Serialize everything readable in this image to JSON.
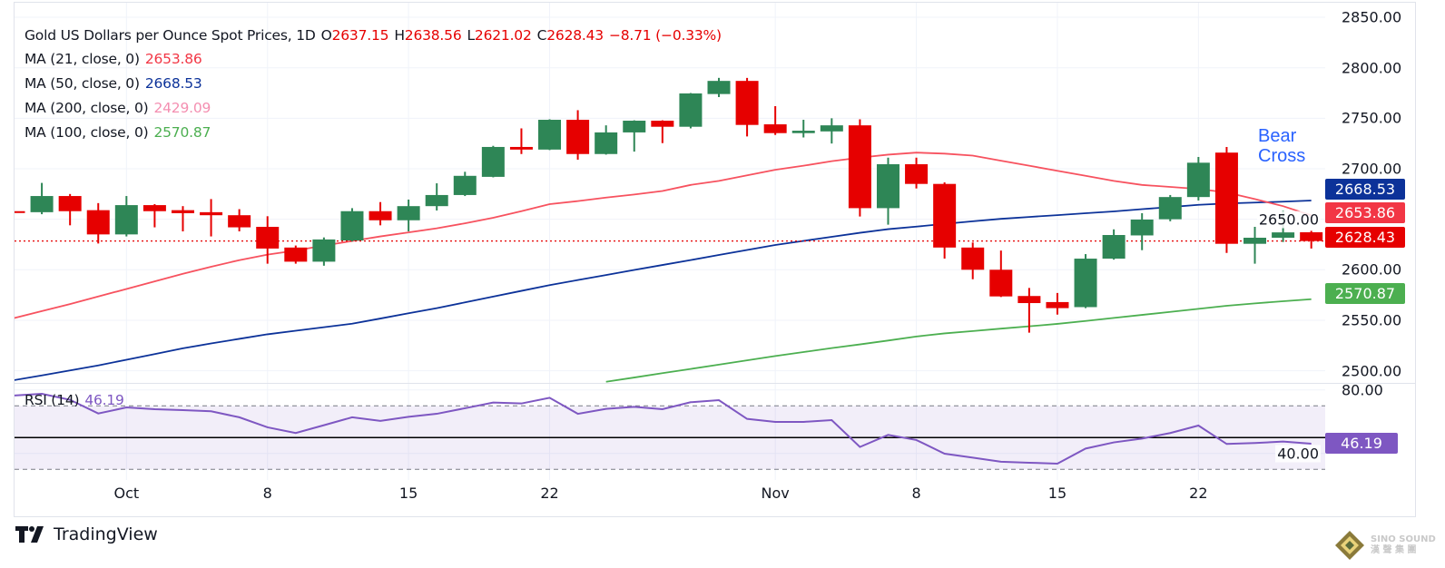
{
  "header": {
    "symbol_title": "Gold US Dollars per Ounce Spot Prices, 1D",
    "open_label": "O",
    "open": "2637.15",
    "high_label": "H",
    "high": "2638.56",
    "low_label": "L",
    "low": "2621.02",
    "close_label": "C",
    "close": "2628.43",
    "change": "−8.71 (−0.33%)"
  },
  "indicators": [
    {
      "label": "MA (21, close, 0)",
      "value": "2653.86",
      "color": "#f23645"
    },
    {
      "label": "MA (50, close, 0)",
      "value": "2668.53",
      "color": "#0c3299"
    },
    {
      "label": "MA (200, close, 0)",
      "value": "2429.09",
      "color": "#f48fb1"
    },
    {
      "label": "MA (100, close, 0)",
      "value": "2570.87",
      "color": "#4caf50"
    }
  ],
  "rsi": {
    "label": "RSI (14)",
    "value": "46.19",
    "color": "#7e57c2"
  },
  "annotation": {
    "line1": "Bear",
    "line2": "Cross",
    "color": "#2962ff"
  },
  "price_badges": [
    {
      "value": "2668.53",
      "color": "#0c3299"
    },
    {
      "value": "2653.86",
      "color": "#f23645"
    },
    {
      "value": "2628.43",
      "color": "#e60000"
    },
    {
      "value": "2570.87",
      "color": "#4caf50"
    }
  ],
  "footer": {
    "brand": "TradingView",
    "watermark_line1": "SINO SOUND",
    "watermark_line2": "漢 聲 集 團"
  },
  "chart_data": {
    "type": "candlestick",
    "up_color": "#2e8656",
    "down_color": "#e60000",
    "dates": [
      "Sep 25",
      "Sep 26",
      "Sep 27",
      "Sep 30",
      "Oct 1",
      "Oct 2",
      "Oct 3",
      "Oct 4",
      "Oct 7",
      "Oct 8",
      "Oct 9",
      "Oct 10",
      "Oct 11",
      "Oct 14",
      "Oct 15",
      "Oct 16",
      "Oct 17",
      "Oct 18",
      "Oct 21",
      "Oct 22",
      "Oct 23",
      "Oct 24",
      "Oct 25",
      "Oct 28",
      "Oct 29",
      "Oct 30",
      "Oct 31",
      "Nov 1",
      "Nov 4",
      "Nov 5",
      "Nov 6",
      "Nov 7",
      "Nov 8",
      "Nov 11",
      "Nov 12",
      "Nov 13",
      "Nov 14",
      "Nov 15",
      "Nov 18",
      "Nov 19",
      "Nov 20",
      "Nov 21",
      "Nov 22",
      "Nov 25",
      "Nov 26",
      "Nov 27",
      "Nov 28"
    ],
    "ohlc": [
      [
        2658,
        2658.5,
        2657,
        2657
      ],
      [
        2657,
        2686,
        2655,
        2673
      ],
      [
        2673,
        2675,
        2644,
        2658
      ],
      [
        2659,
        2666,
        2626,
        2635
      ],
      [
        2635,
        2673,
        2633,
        2664
      ],
      [
        2664,
        2665,
        2642,
        2658
      ],
      [
        2659,
        2663,
        2638,
        2656
      ],
      [
        2657,
        2670,
        2633,
        2654
      ],
      [
        2654,
        2660,
        2638,
        2642
      ],
      [
        2642.5,
        2653,
        2606,
        2621
      ],
      [
        2622,
        2624,
        2606,
        2608
      ],
      [
        2608,
        2632,
        2604,
        2630
      ],
      [
        2629,
        2661,
        2628,
        2658
      ],
      [
        2658,
        2667,
        2644,
        2649
      ],
      [
        2649,
        2669.5,
        2638,
        2663
      ],
      [
        2663,
        2685.6,
        2658.7,
        2674
      ],
      [
        2674,
        2697,
        2673,
        2693
      ],
      [
        2692,
        2722.7,
        2691.5,
        2721.6
      ],
      [
        2721.6,
        2740,
        2714.6,
        2719
      ],
      [
        2719,
        2749,
        2718.5,
        2748.5
      ],
      [
        2748.5,
        2758,
        2709,
        2714.6
      ],
      [
        2714.6,
        2743,
        2714,
        2736
      ],
      [
        2736,
        2748,
        2717,
        2747.6
      ],
      [
        2747.6,
        2748,
        2725.4,
        2741.6
      ],
      [
        2741.6,
        2775,
        2740,
        2774.6
      ],
      [
        2774,
        2790,
        2771,
        2787
      ],
      [
        2787,
        2790,
        2732,
        2743.4
      ],
      [
        2744,
        2762,
        2733.5,
        2735.3
      ],
      [
        2735.3,
        2748.5,
        2731,
        2737.7
      ],
      [
        2737,
        2750,
        2725,
        2743
      ],
      [
        2743,
        2749,
        2652.7,
        2661
      ],
      [
        2661,
        2711,
        2644.6,
        2704.5
      ],
      [
        2704.5,
        2711,
        2680.5,
        2685
      ],
      [
        2685,
        2686.5,
        2611,
        2622
      ],
      [
        2622,
        2627,
        2590.6,
        2600
      ],
      [
        2600,
        2619,
        2573,
        2573.6
      ],
      [
        2574,
        2582,
        2537.7,
        2567
      ],
      [
        2568,
        2577,
        2555.6,
        2562
      ],
      [
        2563,
        2615.5,
        2562,
        2611
      ],
      [
        2611,
        2640,
        2610,
        2634.4
      ],
      [
        2634,
        2656,
        2619.4,
        2649.7
      ],
      [
        2650,
        2674,
        2648,
        2672
      ],
      [
        2672,
        2711.7,
        2668.6,
        2706
      ],
      [
        2716,
        2721.6,
        2616.7,
        2625.7
      ],
      [
        2625.7,
        2642.5,
        2606,
        2631.7
      ],
      [
        2631.7,
        2658.7,
        2627.5,
        2637
      ],
      [
        2637.15,
        2638.56,
        2621.02,
        2628.43
      ]
    ],
    "ma21": [
      2552,
      2559,
      2566,
      2573.5,
      2581,
      2588.5,
      2596,
      2603,
      2609.5,
      2615,
      2619,
      2624,
      2628.5,
      2633,
      2637,
      2641,
      2646,
      2651.5,
      2658,
      2665,
      2668,
      2671.5,
      2674.5,
      2678,
      2684,
      2688,
      2693.5,
      2699,
      2703,
      2707.5,
      2711,
      2714,
      2716,
      2715,
      2713,
      2708,
      2703,
      2698,
      2693,
      2688,
      2684,
      2682,
      2680,
      2676.5,
      2670,
      2663,
      2653.86
    ],
    "ma50": [
      2490.6,
      2495.4,
      2500.3,
      2505.3,
      2510.9,
      2516.5,
      2522.2,
      2527,
      2531.6,
      2536.1,
      2539.6,
      2543.1,
      2546.6,
      2551.7,
      2556.9,
      2562,
      2567.7,
      2573.4,
      2579.1,
      2584.8,
      2589.8,
      2594.8,
      2599.8,
      2604.7,
      2609.6,
      2614.6,
      2619.6,
      2624.5,
      2628.6,
      2632.6,
      2636.6,
      2640.2,
      2642.7,
      2645.4,
      2648,
      2650.4,
      2652.3,
      2654.1,
      2656,
      2657.8,
      2660,
      2662.1,
      2664.3,
      2665.6,
      2666.5,
      2667.4,
      2668.53
    ],
    "ma100": [
      null,
      null,
      null,
      null,
      null,
      null,
      null,
      null,
      null,
      null,
      null,
      null,
      null,
      null,
      null,
      null,
      null,
      null,
      null,
      null,
      null,
      2489.1,
      2493.3,
      2497.6,
      2501.8,
      2506,
      2510.3,
      2514.6,
      2518.5,
      2522.4,
      2526.1,
      2529.9,
      2533.9,
      2537,
      2539.3,
      2541.7,
      2544,
      2546.4,
      2549.3,
      2552.3,
      2555.3,
      2558.3,
      2561.3,
      2564.3,
      2566.7,
      2568.8,
      2570.87
    ],
    "rsi14": [
      76.5,
      77.6,
      73.8,
      65.2,
      69,
      67.9,
      67.3,
      66.6,
      62.8,
      56.5,
      52.9,
      57.8,
      62.8,
      60.5,
      63.1,
      65,
      68.5,
      72.1,
      71.5,
      75.1,
      65,
      68.1,
      69.4,
      67.9,
      72.3,
      73.6,
      61.8,
      59.9,
      59.9,
      61,
      44.1,
      51.7,
      48.5,
      39.9,
      37.4,
      34.8,
      34.2,
      33.6,
      43.1,
      47,
      49.4,
      52.9,
      57.6,
      46,
      46.6,
      47.5,
      46.19
    ],
    "last_close": 2628.43,
    "ylim": [
      2490,
      2855
    ],
    "y_ticks": [
      "2500.00",
      "2550.00",
      "2600.00",
      "2650.00",
      "2700.00",
      "2750.00",
      "2800.00",
      "2850.00"
    ],
    "rsi_levels": {
      "upper": 70,
      "middle": 50,
      "lower": 30
    },
    "rsi_ticks": [
      "80.00",
      "40.00"
    ],
    "x_ticks": [
      {
        "label": "Oct",
        "date": "Oct 1"
      },
      {
        "label": "8",
        "date": "Oct 8"
      },
      {
        "label": "15",
        "date": "Oct 15"
      },
      {
        "label": "22",
        "date": "Oct 22"
      },
      {
        "label": "Nov",
        "date": "Nov 1"
      },
      {
        "label": "8",
        "date": "Nov 8"
      },
      {
        "label": "15",
        "date": "Nov 15"
      },
      {
        "label": "22",
        "date": "Nov 22"
      }
    ],
    "grid": true
  }
}
